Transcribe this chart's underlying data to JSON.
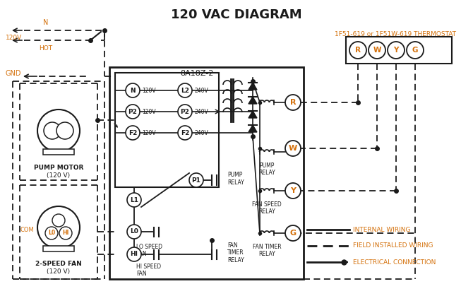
{
  "title": "120 VAC DIAGRAM",
  "orange": "#d4700a",
  "black": "#1a1a1a",
  "bg": "#ffffff",
  "thermo_label": "1F51-619 or 1F51W-619 THERMOSTAT",
  "ctrl_label": "8A18Z-2",
  "thermo_terms": [
    "R",
    "W",
    "Y",
    "G"
  ],
  "left_terms": [
    "N",
    "P2",
    "F2"
  ],
  "left_volts": [
    "120V",
    "120V",
    "120V"
  ],
  "right_terms": [
    "L2",
    "P2",
    "F2"
  ],
  "right_volts": [
    "240V",
    "240V",
    "240V"
  ],
  "relay_terms": [
    "R",
    "W",
    "Y",
    "G"
  ],
  "relay_labels": [
    "",
    "PUMP\nRELAY",
    "FAN SPEED\nRELAY",
    "FAN TIMER\nRELAY"
  ],
  "leg1": "INTERNAL WIRING",
  "leg2": "FIELD INSTALLED WIRING",
  "leg3": "ELECTRICAL CONNECTION"
}
